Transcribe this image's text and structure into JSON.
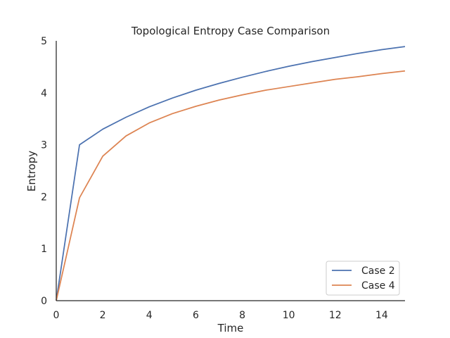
{
  "chart_data": {
    "type": "line",
    "title": "Topological Entropy Case Comparison",
    "xlabel": "Time",
    "ylabel": "Entropy",
    "xlim": [
      0,
      15
    ],
    "ylim": [
      0,
      5
    ],
    "xticks": [
      0,
      2,
      4,
      6,
      8,
      10,
      12,
      14
    ],
    "yticks": [
      0,
      1,
      2,
      3,
      4,
      5
    ],
    "grid": false,
    "legend_position": "lower-right",
    "x": [
      0,
      1,
      2,
      3,
      4,
      5,
      6,
      7,
      8,
      9,
      10,
      11,
      12,
      13,
      14,
      15
    ],
    "series": [
      {
        "name": "Case 2",
        "color": "#4c72b0",
        "values": [
          0.0,
          3.0,
          3.3,
          3.53,
          3.73,
          3.9,
          4.05,
          4.18,
          4.3,
          4.41,
          4.51,
          4.6,
          4.68,
          4.76,
          4.83,
          4.89
        ]
      },
      {
        "name": "Case 4",
        "color": "#dd8452",
        "values": [
          0.0,
          1.98,
          2.78,
          3.17,
          3.42,
          3.6,
          3.74,
          3.86,
          3.96,
          4.05,
          4.12,
          4.19,
          4.26,
          4.31,
          4.37,
          4.42
        ]
      }
    ]
  }
}
